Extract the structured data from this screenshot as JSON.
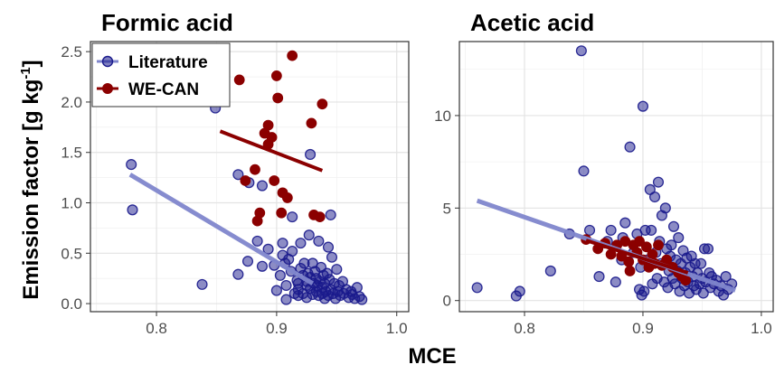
{
  "colors": {
    "literature": "#1a1a8c",
    "literature_fit": "#7f86cc",
    "wecan": "#8b0000"
  },
  "xlabel": "MCE",
  "ylabel": "Emission factor [g kg",
  "ylabel_sup": "-1",
  "ylabel_close": "]",
  "legend": {
    "position": "top-left",
    "items": [
      "Literature",
      "WE-CAN"
    ]
  },
  "chart_data": [
    {
      "type": "scatter",
      "title": "Formic acid",
      "xlim": [
        0.745,
        1.01
      ],
      "ylim": [
        -0.08,
        2.6
      ],
      "xticks": [
        0.8,
        0.9,
        1.0
      ],
      "xtick_labels": [
        "0.8",
        "0.9",
        "1.0"
      ],
      "yticks": [
        0,
        0.5,
        1.0,
        1.5,
        2.0,
        2.5
      ],
      "ytick_labels": [
        "0.0",
        "0.5",
        "1.0",
        "1.5",
        "2.0",
        "2.5"
      ],
      "grid": true,
      "series": [
        {
          "name": "Literature",
          "points": [
            [
              0.779,
              1.38
            ],
            [
              0.78,
              0.93
            ],
            [
              0.838,
              0.19
            ],
            [
              0.849,
              1.94
            ],
            [
              0.855,
              2.36
            ],
            [
              0.868,
              1.28
            ],
            [
              0.868,
              0.29
            ],
            [
              0.876,
              0.42
            ],
            [
              0.877,
              1.2
            ],
            [
              0.884,
              0.62
            ],
            [
              0.888,
              1.17
            ],
            [
              0.888,
              0.37
            ],
            [
              0.893,
              0.54
            ],
            [
              0.898,
              0.38
            ],
            [
              0.9,
              0.13
            ],
            [
              0.903,
              0.28
            ],
            [
              0.905,
              0.48
            ],
            [
              0.905,
              0.6
            ],
            [
              0.907,
              0.4
            ],
            [
              0.908,
              0.04
            ],
            [
              0.908,
              0.18
            ],
            [
              0.91,
              0.44
            ],
            [
              0.912,
              0.32
            ],
            [
              0.913,
              0.86
            ],
            [
              0.913,
              0.52
            ],
            [
              0.915,
              0.1
            ],
            [
              0.917,
              0.23
            ],
            [
              0.918,
              0.08
            ],
            [
              0.918,
              0.14
            ],
            [
              0.918,
              0.2
            ],
            [
              0.92,
              0.35
            ],
            [
              0.92,
              0.6
            ],
            [
              0.922,
              0.28
            ],
            [
              0.922,
              0.1
            ],
            [
              0.923,
              0.4
            ],
            [
              0.925,
              0.06
            ],
            [
              0.925,
              0.18
            ],
            [
              0.925,
              0.22
            ],
            [
              0.926,
              0.3
            ],
            [
              0.927,
              0.68
            ],
            [
              0.928,
              1.48
            ],
            [
              0.928,
              0.15
            ],
            [
              0.928,
              0.26
            ],
            [
              0.93,
              0.09
            ],
            [
              0.93,
              0.4
            ],
            [
              0.931,
              0.2
            ],
            [
              0.932,
              0.32
            ],
            [
              0.933,
              0.12
            ],
            [
              0.933,
              0.25
            ],
            [
              0.934,
              0.18
            ],
            [
              0.935,
              0.08
            ],
            [
              0.935,
              0.62
            ],
            [
              0.936,
              0.22
            ],
            [
              0.937,
              0.36
            ],
            [
              0.938,
              0.1
            ],
            [
              0.938,
              0.16
            ],
            [
              0.939,
              0.28
            ],
            [
              0.94,
              0.05
            ],
            [
              0.94,
              0.2
            ],
            [
              0.941,
              0.12
            ],
            [
              0.942,
              0.3
            ],
            [
              0.943,
              0.56
            ],
            [
              0.943,
              0.08
            ],
            [
              0.944,
              0.24
            ],
            [
              0.945,
              0.88
            ],
            [
              0.945,
              0.14
            ],
            [
              0.946,
              0.46
            ],
            [
              0.947,
              0.1
            ],
            [
              0.948,
              0.2
            ],
            [
              0.949,
              0.05
            ],
            [
              0.95,
              0.34
            ],
            [
              0.951,
              0.12
            ],
            [
              0.952,
              0.18
            ],
            [
              0.953,
              0.08
            ],
            [
              0.955,
              0.22
            ],
            [
              0.956,
              0.1
            ],
            [
              0.958,
              0.14
            ],
            [
              0.96,
              0.06
            ],
            [
              0.962,
              0.12
            ],
            [
              0.963,
              0.09
            ],
            [
              0.965,
              0.05
            ],
            [
              0.967,
              0.16
            ],
            [
              0.969,
              0.07
            ],
            [
              0.971,
              0.04
            ]
          ],
          "fit": {
            "x": [
              0.778,
              0.93
            ],
            "y": [
              1.28,
              0.2
            ]
          }
        },
        {
          "name": "WE-CAN",
          "points": [
            [
              0.855,
              2.33
            ],
            [
              0.869,
              2.22
            ],
            [
              0.874,
              1.22
            ],
            [
              0.882,
              1.33
            ],
            [
              0.884,
              0.82
            ],
            [
              0.886,
              0.9
            ],
            [
              0.89,
              1.69
            ],
            [
              0.893,
              1.77
            ],
            [
              0.893,
              1.58
            ],
            [
              0.896,
              1.65
            ],
            [
              0.898,
              1.22
            ],
            [
              0.9,
              2.26
            ],
            [
              0.901,
              2.04
            ],
            [
              0.904,
              0.9
            ],
            [
              0.905,
              1.1
            ],
            [
              0.909,
              1.05
            ],
            [
              0.913,
              2.46
            ],
            [
              0.929,
              1.79
            ],
            [
              0.931,
              0.88
            ],
            [
              0.936,
              0.86
            ],
            [
              0.938,
              1.98
            ]
          ],
          "fit": {
            "x": [
              0.853,
              0.938
            ],
            "y": [
              1.71,
              1.32
            ]
          }
        }
      ]
    },
    {
      "type": "scatter",
      "title": "Acetic acid",
      "xlim": [
        0.745,
        1.01
      ],
      "ylim": [
        -0.6,
        14.0
      ],
      "xticks": [
        0.8,
        0.9,
        1.0
      ],
      "xtick_labels": [
        "0.8",
        "0.9",
        "1.0"
      ],
      "yticks": [
        0,
        5,
        10
      ],
      "ytick_labels": [
        "0",
        "5",
        "10"
      ],
      "grid": true,
      "series": [
        {
          "name": "Literature",
          "points": [
            [
              0.76,
              0.7
            ],
            [
              0.793,
              0.25
            ],
            [
              0.796,
              0.5
            ],
            [
              0.822,
              1.6
            ],
            [
              0.838,
              3.6
            ],
            [
              0.848,
              13.5
            ],
            [
              0.85,
              7.0
            ],
            [
              0.855,
              3.8
            ],
            [
              0.863,
              1.3
            ],
            [
              0.87,
              3.2
            ],
            [
              0.873,
              3.8
            ],
            [
              0.877,
              1.0
            ],
            [
              0.882,
              2.2
            ],
            [
              0.883,
              3.4
            ],
            [
              0.885,
              4.2
            ],
            [
              0.889,
              8.3
            ],
            [
              0.892,
              2.6
            ],
            [
              0.895,
              3.6
            ],
            [
              0.897,
              0.6
            ],
            [
              0.898,
              1.8
            ],
            [
              0.899,
              0.3
            ],
            [
              0.9,
              10.5
            ],
            [
              0.901,
              0.5
            ],
            [
              0.902,
              3.8
            ],
            [
              0.904,
              2.2
            ],
            [
              0.906,
              6.0
            ],
            [
              0.907,
              3.8
            ],
            [
              0.908,
              0.9
            ],
            [
              0.91,
              5.6
            ],
            [
              0.911,
              2.6
            ],
            [
              0.912,
              1.2
            ],
            [
              0.913,
              6.4
            ],
            [
              0.914,
              3.2
            ],
            [
              0.915,
              2.0
            ],
            [
              0.916,
              4.6
            ],
            [
              0.918,
              1.0
            ],
            [
              0.919,
              5.0
            ],
            [
              0.92,
              2.8
            ],
            [
              0.921,
              0.7
            ],
            [
              0.922,
              1.6
            ],
            [
              0.923,
              2.4
            ],
            [
              0.924,
              3.0
            ],
            [
              0.925,
              1.2
            ],
            [
              0.926,
              4.0
            ],
            [
              0.927,
              0.9
            ],
            [
              0.928,
              2.2
            ],
            [
              0.929,
              1.6
            ],
            [
              0.93,
              3.4
            ],
            [
              0.931,
              0.5
            ],
            [
              0.932,
              2.0
            ],
            [
              0.933,
              1.2
            ],
            [
              0.934,
              2.7
            ],
            [
              0.935,
              0.8
            ],
            [
              0.936,
              1.5
            ],
            [
              0.937,
              2.3
            ],
            [
              0.938,
              1.0
            ],
            [
              0.939,
              0.4
            ],
            [
              0.94,
              1.8
            ],
            [
              0.941,
              2.4
            ],
            [
              0.942,
              1.3
            ],
            [
              0.943,
              0.8
            ],
            [
              0.944,
              2.0
            ],
            [
              0.945,
              0.6
            ],
            [
              0.946,
              1.5
            ],
            [
              0.948,
              0.9
            ],
            [
              0.949,
              2.0
            ],
            [
              0.95,
              1.2
            ],
            [
              0.951,
              0.4
            ],
            [
              0.952,
              2.8
            ],
            [
              0.953,
              1.0
            ],
            [
              0.955,
              2.8
            ],
            [
              0.956,
              1.5
            ],
            [
              0.957,
              0.7
            ],
            [
              0.958,
              1.3
            ],
            [
              0.96,
              0.9
            ],
            [
              0.962,
              1.1
            ],
            [
              0.964,
              0.5
            ],
            [
              0.966,
              0.8
            ],
            [
              0.968,
              0.3
            ],
            [
              0.97,
              1.3
            ],
            [
              0.972,
              0.6
            ],
            [
              0.975,
              0.9
            ]
          ],
          "fit": {
            "x": [
              0.76,
              0.978
            ],
            "y": [
              5.4,
              0.55
            ]
          }
        },
        {
          "name": "WE-CAN",
          "points": [
            [
              0.852,
              3.3
            ],
            [
              0.862,
              2.8
            ],
            [
              0.868,
              3.1
            ],
            [
              0.873,
              2.5
            ],
            [
              0.878,
              3.0
            ],
            [
              0.882,
              2.4
            ],
            [
              0.885,
              3.2
            ],
            [
              0.888,
              2.1
            ],
            [
              0.889,
              1.6
            ],
            [
              0.892,
              3.0
            ],
            [
              0.895,
              2.6
            ],
            [
              0.897,
              3.2
            ],
            [
              0.9,
              2.2
            ],
            [
              0.903,
              2.9
            ],
            [
              0.905,
              1.8
            ],
            [
              0.908,
              2.5
            ],
            [
              0.91,
              2.0
            ],
            [
              0.913,
              3.0
            ],
            [
              0.916,
              1.9
            ],
            [
              0.92,
              2.2
            ],
            [
              0.925,
              1.8
            ],
            [
              0.93,
              1.5
            ],
            [
              0.933,
              1.3
            ],
            [
              0.936,
              1.1
            ]
          ],
          "fit": {
            "x": [
              0.852,
              0.938
            ],
            "y": [
              3.25,
              1.5
            ]
          }
        }
      ]
    }
  ]
}
